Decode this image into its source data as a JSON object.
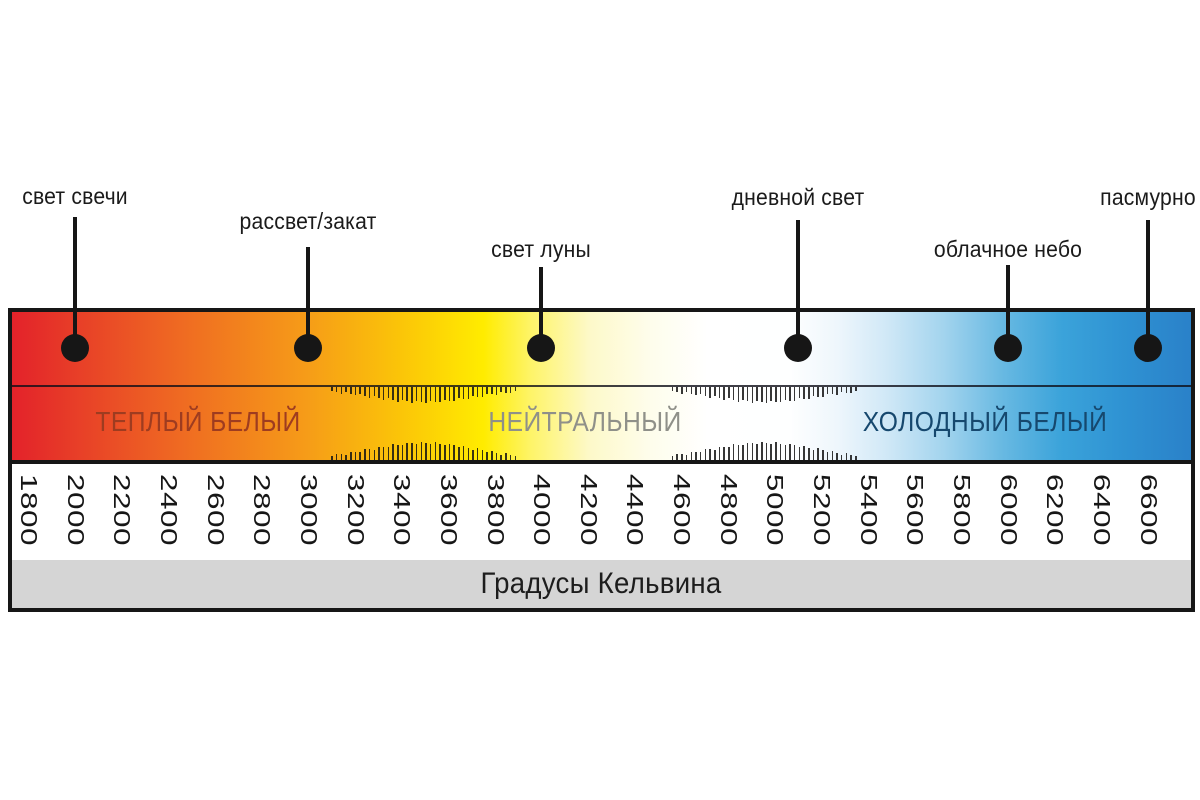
{
  "chart_data": {
    "type": "scale",
    "unit_label": "Градусы Кельвина",
    "axis": {
      "min": 1800,
      "max": 6600,
      "step": 200,
      "tick_labels": [
        "1800",
        "2000",
        "2200",
        "2400",
        "2600",
        "2800",
        "3000",
        "3200",
        "3400",
        "3600",
        "3800",
        "4000",
        "4200",
        "4400",
        "4600",
        "4800",
        "5000",
        "5200",
        "5400",
        "5600",
        "5800",
        "6000",
        "6200",
        "6400",
        "6600"
      ]
    },
    "zones": [
      {
        "label": "ТЕПЛЫЙ БЕЛЫЙ",
        "approx_range_k": [
          1800,
          3100
        ],
        "text_color": "#9e3c20"
      },
      {
        "label": "НЕЙТРАЛЬНЫЙ",
        "approx_range_k": [
          3900,
          4600
        ],
        "text_color": "#8f9089"
      },
      {
        "label": "ХОЛОДНЫЙ БЕЛЫЙ",
        "approx_range_k": [
          5400,
          6600
        ],
        "text_color": "#16486e"
      }
    ],
    "transition_hatch_ranges_k": [
      [
        3100,
        3880
      ],
      [
        4560,
        5350
      ]
    ],
    "markers": [
      {
        "label": "свет свечи",
        "kelvin": 2000
      },
      {
        "label": "рассвет/закат",
        "kelvin": 3000
      },
      {
        "label": "свет луны",
        "kelvin": 4000
      },
      {
        "label": "дневной свет",
        "kelvin": 5100
      },
      {
        "label": "облачное небо",
        "kelvin": 6000
      },
      {
        "label": "пасмурно",
        "kelvin": 6600
      }
    ],
    "gradient_stops": [
      {
        "pos": 0,
        "color": "#e3222a"
      },
      {
        "pos": 5,
        "color": "#e73c28"
      },
      {
        "pos": 13,
        "color": "#ee6423"
      },
      {
        "pos": 25,
        "color": "#f69c18"
      },
      {
        "pos": 33,
        "color": "#fbc508"
      },
      {
        "pos": 40,
        "color": "#ffec00"
      },
      {
        "pos": 44,
        "color": "#fef468"
      },
      {
        "pos": 49,
        "color": "#fdf9c9"
      },
      {
        "pos": 54,
        "color": "#fefdeb"
      },
      {
        "pos": 59,
        "color": "#ffffff"
      },
      {
        "pos": 66,
        "color": "#feffff"
      },
      {
        "pos": 70,
        "color": "#eef6fc"
      },
      {
        "pos": 74,
        "color": "#d2e9f7"
      },
      {
        "pos": 79,
        "color": "#a3d4ee"
      },
      {
        "pos": 84,
        "color": "#68b9e2"
      },
      {
        "pos": 89,
        "color": "#3ba3da"
      },
      {
        "pos": 94,
        "color": "#2f93d3"
      },
      {
        "pos": 100,
        "color": "#2a81c9"
      }
    ]
  },
  "colors": {
    "ink": "#161616",
    "band_gray": "#d5d5d5",
    "page_background": "#ffffff"
  }
}
